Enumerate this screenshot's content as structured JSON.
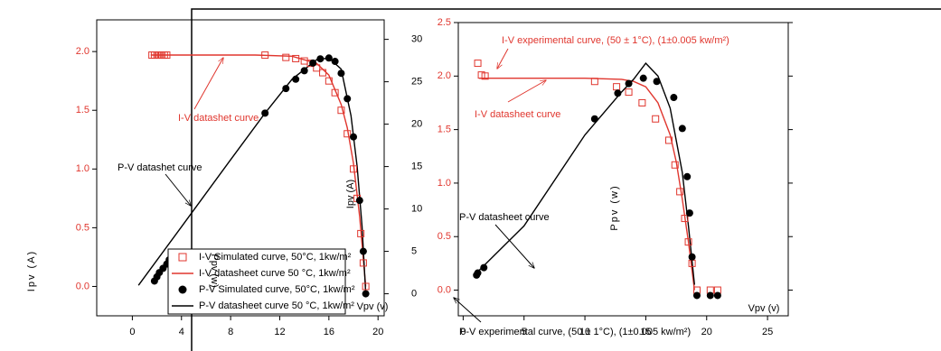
{
  "chart_data": [
    {
      "type": "line",
      "xlabel": "Vpv (v)",
      "ylabel": "Ipv (A)",
      "y2label": "Ipv (A)",
      "xlim": [
        -2.9,
        20.5
      ],
      "xticks": [
        0,
        4,
        8,
        12,
        16,
        20
      ],
      "ylim": [
        -0.25,
        2.27
      ],
      "yticks": [
        {
          "value": 0,
          "label": "0.0"
        },
        0.5,
        {
          "value": 1,
          "label": "1.0"
        },
        1.5,
        {
          "value": 2,
          "label": "2.0"
        }
      ],
      "y2lim": [
        -2.6,
        32.3
      ],
      "y2ticks": [
        0,
        5,
        10,
        15,
        20,
        25,
        30
      ],
      "series": [
        {
          "name": "I-V Simulated curve, 50°C, 1kw/m²",
          "color": "#e0362e",
          "marker": "square",
          "x": [
            1.6,
            1.8,
            2.0,
            2.2,
            2.4,
            2.6,
            2.8,
            10.8,
            12.5,
            13.3,
            14.0,
            14.5,
            15.0,
            15.5,
            16.0,
            16.5,
            17.0,
            17.5,
            18.0,
            18.3,
            18.6,
            18.8,
            19.0
          ],
          "values": [
            1.97,
            1.97,
            1.97,
            1.97,
            1.97,
            1.97,
            1.97,
            1.97,
            1.95,
            1.94,
            1.92,
            1.9,
            1.86,
            1.82,
            1.75,
            1.65,
            1.5,
            1.3,
            1.0,
            0.75,
            0.45,
            0.2,
            0.0
          ]
        },
        {
          "name": "I-V datasheet curve 50 °C, 1kw/m²",
          "color": "#e0362e",
          "marker": "none",
          "x": [
            1.5,
            10,
            13,
            15,
            16,
            17,
            17.5,
            18,
            18.5,
            19
          ],
          "values": [
            1.97,
            1.97,
            1.96,
            1.9,
            1.8,
            1.55,
            1.35,
            1.05,
            0.6,
            0.0
          ]
        },
        {
          "name": "P-V Simulated curve, 50°C, 1kw/m²",
          "color": "#000000",
          "marker": "circle",
          "axis": "y2",
          "x": [
            1.8,
            2.0,
            2.2,
            2.5,
            2.8,
            3.0,
            10.8,
            12.5,
            13.3,
            14.0,
            14.7,
            15.3,
            16.0,
            16.5,
            17.0,
            17.5,
            18.0,
            18.5,
            18.8,
            19.0
          ],
          "values": [
            1.5,
            2,
            2.5,
            3,
            3.5,
            4,
            21.3,
            24.2,
            25.3,
            26.3,
            27.2,
            27.7,
            27.8,
            27.4,
            26,
            23,
            18.5,
            11,
            5,
            0
          ]
        },
        {
          "name": "P-V datasheet curve 50 °C, 1kw/m²",
          "color": "#000000",
          "marker": "none",
          "axis": "y2",
          "x": [
            0.5,
            4,
            8,
            10.8,
            13,
            15,
            16,
            17,
            17.8,
            18.3,
            18.7,
            19
          ],
          "values": [
            1,
            7.9,
            15.8,
            21.3,
            25.3,
            27.6,
            27.8,
            26.5,
            21,
            15,
            8,
            0
          ]
        }
      ],
      "annotations": [
        {
          "text": "I-V datashet curve",
          "color": "#e0362e"
        },
        {
          "text": "P-V datashet curve",
          "color": "#000000"
        },
        {
          "text": "Ppv (w)",
          "color": "#000000"
        }
      ]
    },
    {
      "type": "line",
      "xlabel": "Vpv (v)",
      "ylabel": "Ppv (w)",
      "xlim": [
        -0.4,
        26.7
      ],
      "xticks": [
        0,
        5,
        10,
        15,
        20,
        25
      ],
      "ylim": [
        -0.24,
        2.5
      ],
      "yticks": [
        {
          "value": 0,
          "label": "0.0"
        },
        0.5,
        {
          "value": 1,
          "label": "1.0"
        },
        1.5,
        {
          "value": 2,
          "label": "2.0"
        },
        2.5
      ],
      "series": [
        {
          "name": "I-V experimental",
          "color": "#e0362e",
          "marker": "square",
          "x": [
            1.2,
            1.5,
            1.8,
            10.8,
            12.6,
            13.6,
            14.7,
            15.8,
            16.9,
            17.4,
            17.8,
            18.2,
            18.5,
            18.8,
            19.2,
            20.3,
            20.9
          ],
          "values": [
            2.12,
            2.01,
            2.0,
            1.95,
            1.9,
            1.85,
            1.75,
            1.6,
            1.4,
            1.17,
            0.92,
            0.67,
            0.45,
            0.25,
            0.0,
            0.0,
            0.0
          ]
        },
        {
          "name": "I-V datasheet",
          "color": "#e0362e",
          "marker": "none",
          "x": [
            1.3,
            10,
            13,
            14,
            15,
            16,
            17,
            17.5,
            18,
            18.5,
            19
          ],
          "values": [
            1.98,
            1.98,
            1.97,
            1.95,
            1.9,
            1.75,
            1.45,
            1.2,
            0.85,
            0.45,
            0.0
          ]
        },
        {
          "name": "P-V experimental",
          "color": "#000000",
          "marker": "circle",
          "x": [
            1.1,
            1.2,
            1.7,
            10.8,
            12.7,
            13.6,
            14.8,
            15.9,
            17.3,
            18.0,
            18.4,
            18.6,
            18.8,
            19.2,
            20.3,
            20.9
          ],
          "values": [
            0.14,
            0.16,
            0.21,
            1.6,
            1.84,
            1.93,
            1.98,
            1.95,
            1.8,
            1.51,
            1.06,
            0.72,
            0.31,
            -0.05,
            -0.05,
            -0.05
          ]
        },
        {
          "name": "P-V datasheet",
          "color": "#000000",
          "marker": "none",
          "x": [
            1,
            5,
            10,
            13,
            14,
            15,
            16,
            17,
            18,
            18.5,
            19
          ],
          "values": [
            0.15,
            0.6,
            1.45,
            1.85,
            1.97,
            2.12,
            2.0,
            1.7,
            1.1,
            0.6,
            0.05
          ]
        }
      ],
      "annotations": [
        {
          "text": "I-V experimental curve, (50 ± 1°C), (1±0.005 kw/m²)",
          "color": "#e0362e"
        },
        {
          "text": "I-V datasheet curve",
          "color": "#e0362e"
        },
        {
          "text": "P-V datasheet curve",
          "color": "#000000"
        },
        {
          "text": "P-V experimental curve, (50 ± 1°C), (1±0.005 kw/m²)",
          "color": "#000000"
        }
      ]
    }
  ]
}
